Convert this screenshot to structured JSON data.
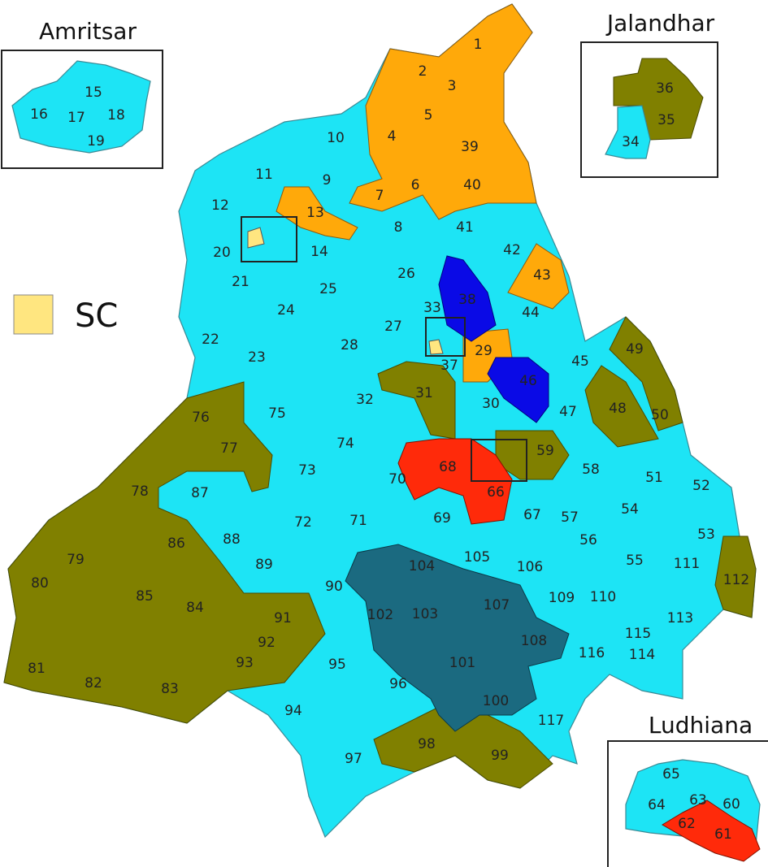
{
  "inset_titles": [
    "Amritsar",
    "Jalandhar",
    "Ludhiana"
  ],
  "legend": {
    "label": "SC"
  },
  "constituencies": [
    "1",
    "2",
    "3",
    "4",
    "5",
    "6",
    "7",
    "8",
    "9",
    "10",
    "11",
    "12",
    "13",
    "14",
    "15",
    "16",
    "17",
    "18",
    "19",
    "20",
    "21",
    "22",
    "23",
    "24",
    "25",
    "26",
    "27",
    "28",
    "29",
    "30",
    "31",
    "32",
    "33",
    "34",
    "35",
    "36",
    "37",
    "38",
    "39",
    "40",
    "41",
    "42",
    "43",
    "44",
    "45",
    "46",
    "47",
    "48",
    "49",
    "50",
    "51",
    "52",
    "53",
    "54",
    "55",
    "56",
    "57",
    "58",
    "59",
    "60",
    "61",
    "62",
    "63",
    "64",
    "65",
    "66",
    "67",
    "68",
    "69",
    "70",
    "71",
    "72",
    "73",
    "74",
    "75",
    "76",
    "77",
    "78",
    "79",
    "80",
    "81",
    "82",
    "83",
    "84",
    "85",
    "86",
    "87",
    "88",
    "89",
    "90",
    "91",
    "92",
    "93",
    "94",
    "95",
    "96",
    "97",
    "98",
    "99",
    "100",
    "101",
    "102",
    "103",
    "104",
    "105",
    "106",
    "107",
    "108",
    "109",
    "110",
    "111",
    "112",
    "113",
    "114",
    "115",
    "116",
    "117"
  ]
}
